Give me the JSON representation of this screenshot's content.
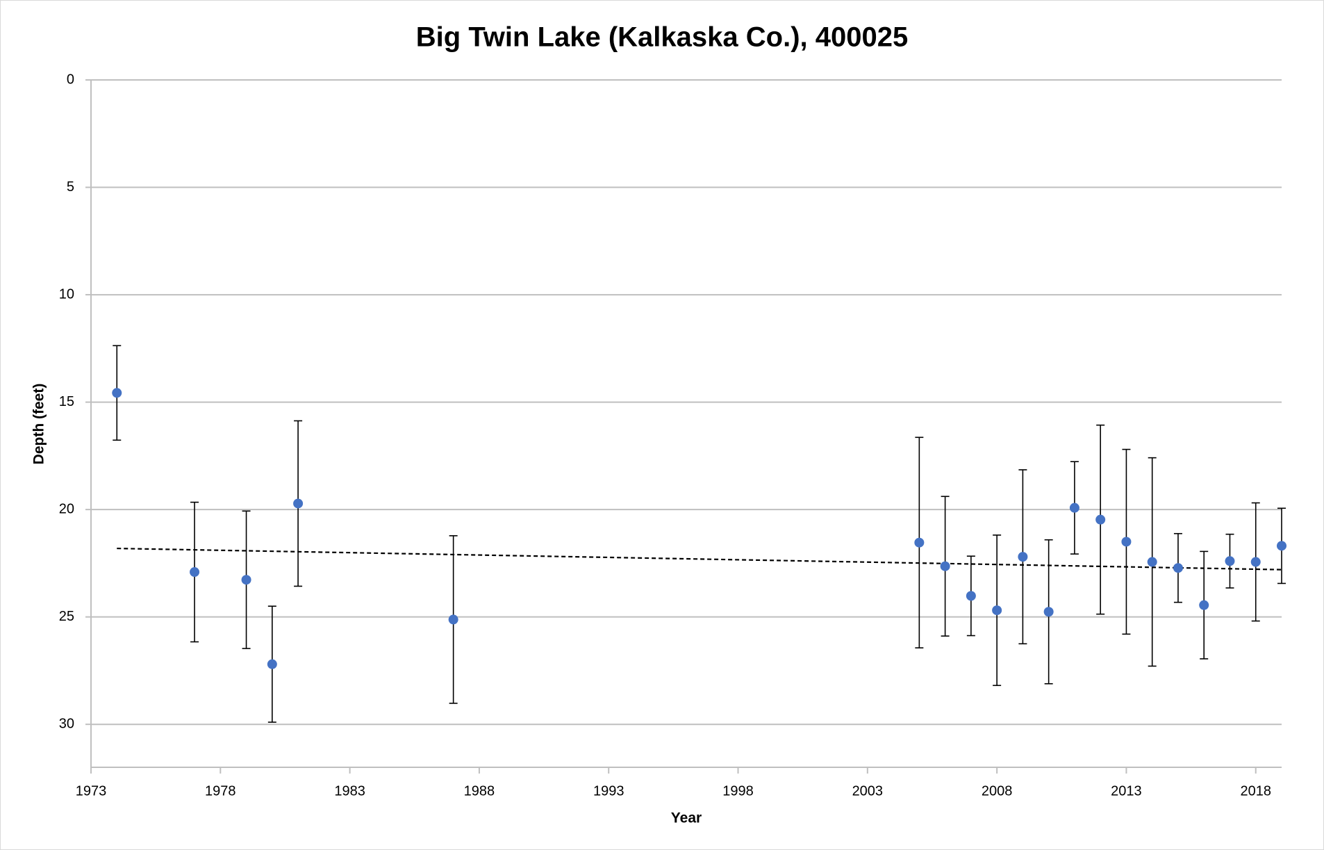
{
  "chart_data": {
    "type": "scatter",
    "title": "Big Twin Lake (Kalkaska Co.), 400025",
    "x_label": "Year",
    "y_label": "Depth (feet)",
    "x": [
      1974,
      1977,
      1979,
      1980,
      1981,
      1987,
      2005,
      2006,
      2007,
      2008,
      2009,
      2010,
      2011,
      2012,
      2013,
      2014,
      2015,
      2016,
      2017,
      2018,
      2019
    ],
    "values": [
      14.57,
      22.91,
      23.27,
      27.2,
      19.72,
      25.12,
      21.54,
      22.64,
      24.02,
      24.69,
      22.2,
      24.76,
      19.92,
      20.47,
      21.5,
      22.44,
      22.72,
      24.45,
      22.4,
      22.44,
      21.69
    ],
    "errors": [
      2.2,
      3.25,
      3.2,
      2.7,
      3.85,
      3.9,
      4.9,
      3.25,
      1.85,
      3.5,
      4.05,
      3.35,
      2.15,
      4.4,
      4.3,
      4.85,
      1.6,
      2.5,
      1.25,
      2.75,
      1.75
    ],
    "color": "#4472c4",
    "error_color": "#000000",
    "trendline": {
      "x": [
        1974,
        2019
      ],
      "values": [
        21.81,
        22.8
      ],
      "color": "#000000",
      "dashed": true
    },
    "xlim": [
      1973,
      2019
    ],
    "xticks": [
      1973,
      1978,
      1983,
      1988,
      1993,
      1998,
      2003,
      2008,
      2013,
      2018
    ],
    "ylim": [
      0,
      32
    ],
    "yticks": [
      0,
      5,
      10,
      15,
      20,
      25,
      30
    ],
    "y_reversed": true,
    "grid": true
  }
}
